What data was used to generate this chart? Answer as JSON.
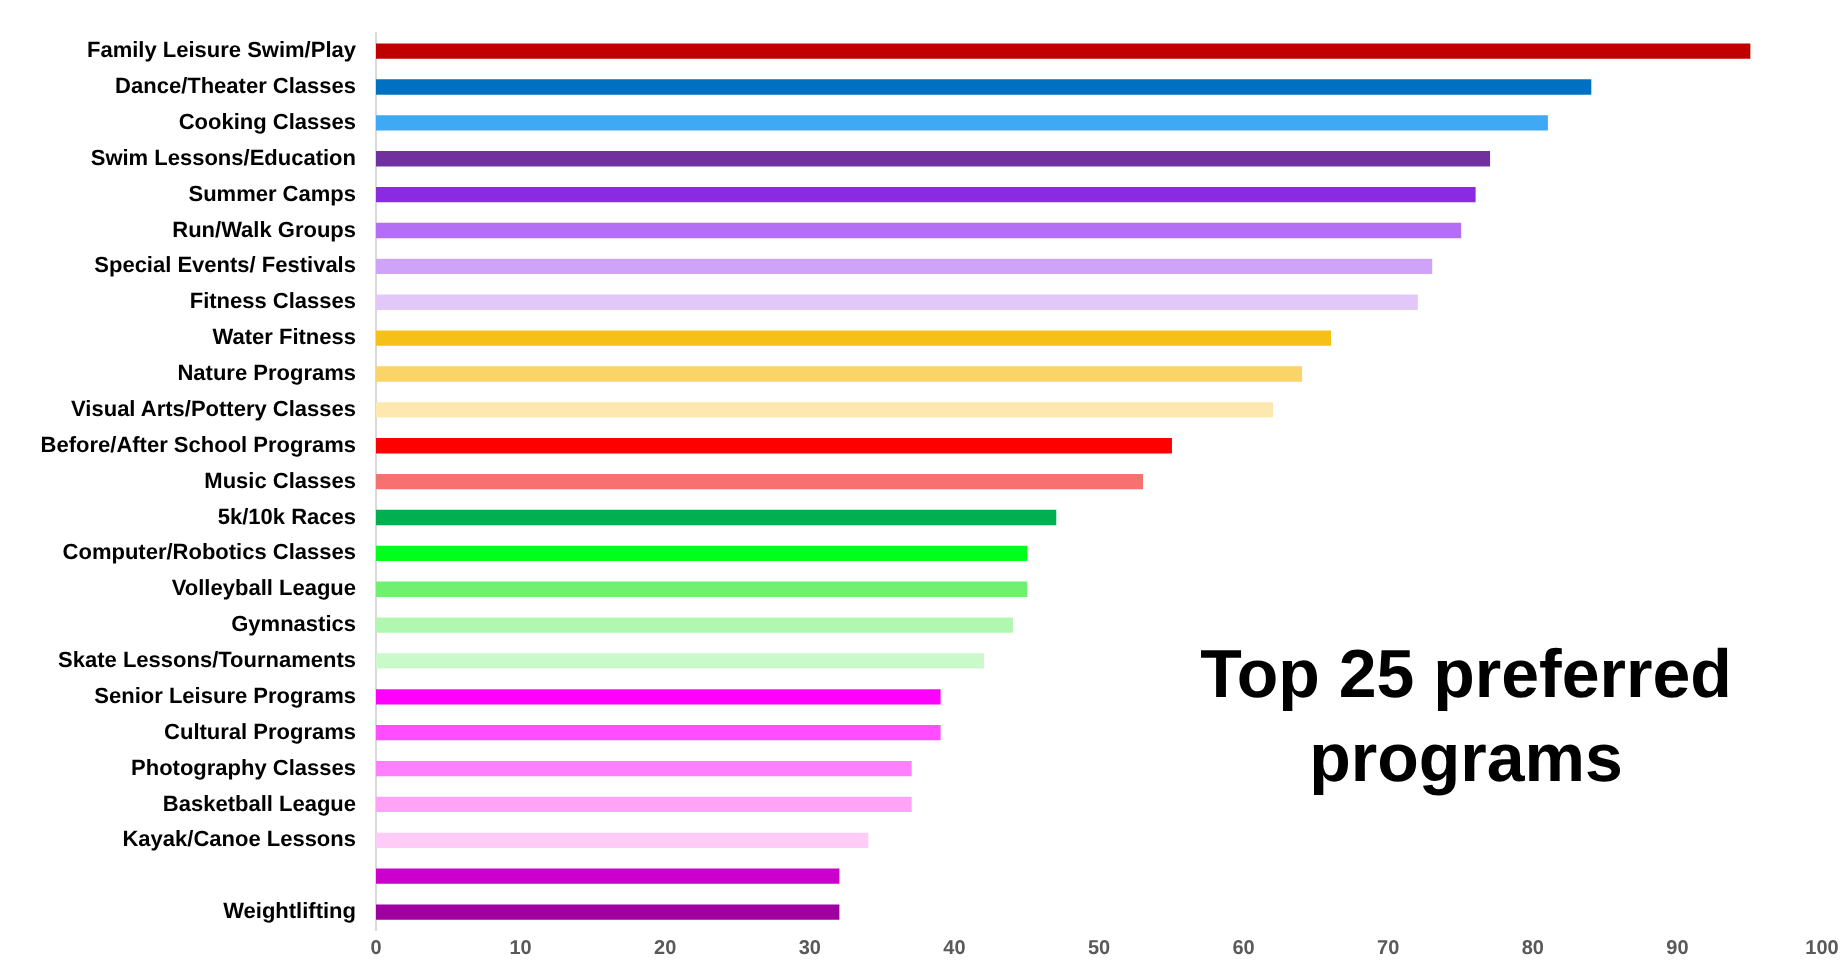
{
  "chart_data": {
    "type": "bar",
    "orientation": "horizontal",
    "title": "Top 25 preferred programs",
    "categories": [
      "Family Leisure Swim/Play",
      "Dance/Theater Classes",
      "Cooking Classes",
      "Swim Lessons/Education",
      "Summer Camps",
      "Run/Walk Groups",
      "Special Events/ Festivals",
      "Fitness Classes",
      "Water Fitness",
      "Nature Programs",
      "Visual Arts/Pottery Classes",
      "Before/After School Programs",
      "Music Classes",
      "5k/10k Races",
      "Computer/Robotics Classes",
      "Volleyball League",
      "Gymnastics",
      "Skate Lessons/Tournaments",
      "Senior Leisure Programs",
      "Cultural Programs",
      "Photography Classes",
      "Basketball League",
      "Kayak/Canoe Lessons",
      null,
      "Weightlifting"
    ],
    "values": [
      95,
      84,
      81,
      77,
      76,
      75,
      73,
      72,
      66,
      64,
      62,
      55,
      53,
      47,
      45,
      45,
      44,
      42,
      39,
      39,
      37,
      37,
      34,
      32,
      32
    ],
    "colors": [
      "#c00000",
      "#0070c0",
      "#3fa9f5",
      "#7030a0",
      "#8a2be2",
      "#b36ef5",
      "#cfa3f7",
      "#e2c8f9",
      "#f5c118",
      "#fad468",
      "#fde9b0",
      "#ff0000",
      "#f87171",
      "#00b050",
      "#00ff1a",
      "#70f070",
      "#b0f8b0",
      "#cafaca",
      "#ff00ff",
      "#ff4dff",
      "#ff80ff",
      "#ffa3f7",
      "#ffccf7",
      "#cc00cc",
      "#a000a0"
    ],
    "xlim": [
      0,
      100
    ],
    "xticks": [
      0,
      10,
      20,
      30,
      40,
      50,
      60,
      70,
      80,
      90,
      100
    ],
    "grid": false,
    "legend": false
  }
}
